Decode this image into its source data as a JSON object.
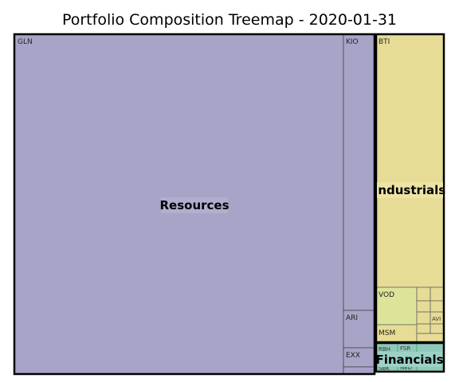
{
  "chart_data": {
    "type": "treemap",
    "title": "Portfolio Composition Treemap - 2020-01-31",
    "sectors": [
      {
        "name": "Resources",
        "color": "#a8a4c8",
        "holdings": [
          {
            "ticker": "GLN"
          },
          {
            "ticker": "KIO"
          },
          {
            "ticker": "ARI"
          },
          {
            "ticker": "EXX"
          },
          {
            "ticker": ""
          }
        ]
      },
      {
        "name": "Industrials",
        "color": "#e6dc95",
        "holdings": [
          {
            "ticker": "BTI"
          },
          {
            "ticker": "VOD"
          },
          {
            "ticker": "MSM"
          },
          {
            "ticker": "AVI"
          },
          {
            "ticker": ""
          },
          {
            "ticker": ""
          },
          {
            "ticker": ""
          },
          {
            "ticker": ""
          },
          {
            "ticker": ""
          },
          {
            "ticker": ""
          },
          {
            "ticker": ""
          }
        ]
      },
      {
        "name": "Financials",
        "color": "#8ec9bb",
        "holdings": [
          {
            "ticker": "RBH"
          },
          {
            "ticker": "FSR"
          },
          {
            "ticker": "NED"
          },
          {
            "ticker": "SBK"
          },
          {
            "ticker": ""
          },
          {
            "ticker": ""
          }
        ]
      }
    ],
    "colors": {
      "resources": "#a8a4c8",
      "industrials": "#e6dc95",
      "industrials_small": "#dde49a",
      "financials": "#8ec9bb",
      "border": "#000000"
    }
  }
}
